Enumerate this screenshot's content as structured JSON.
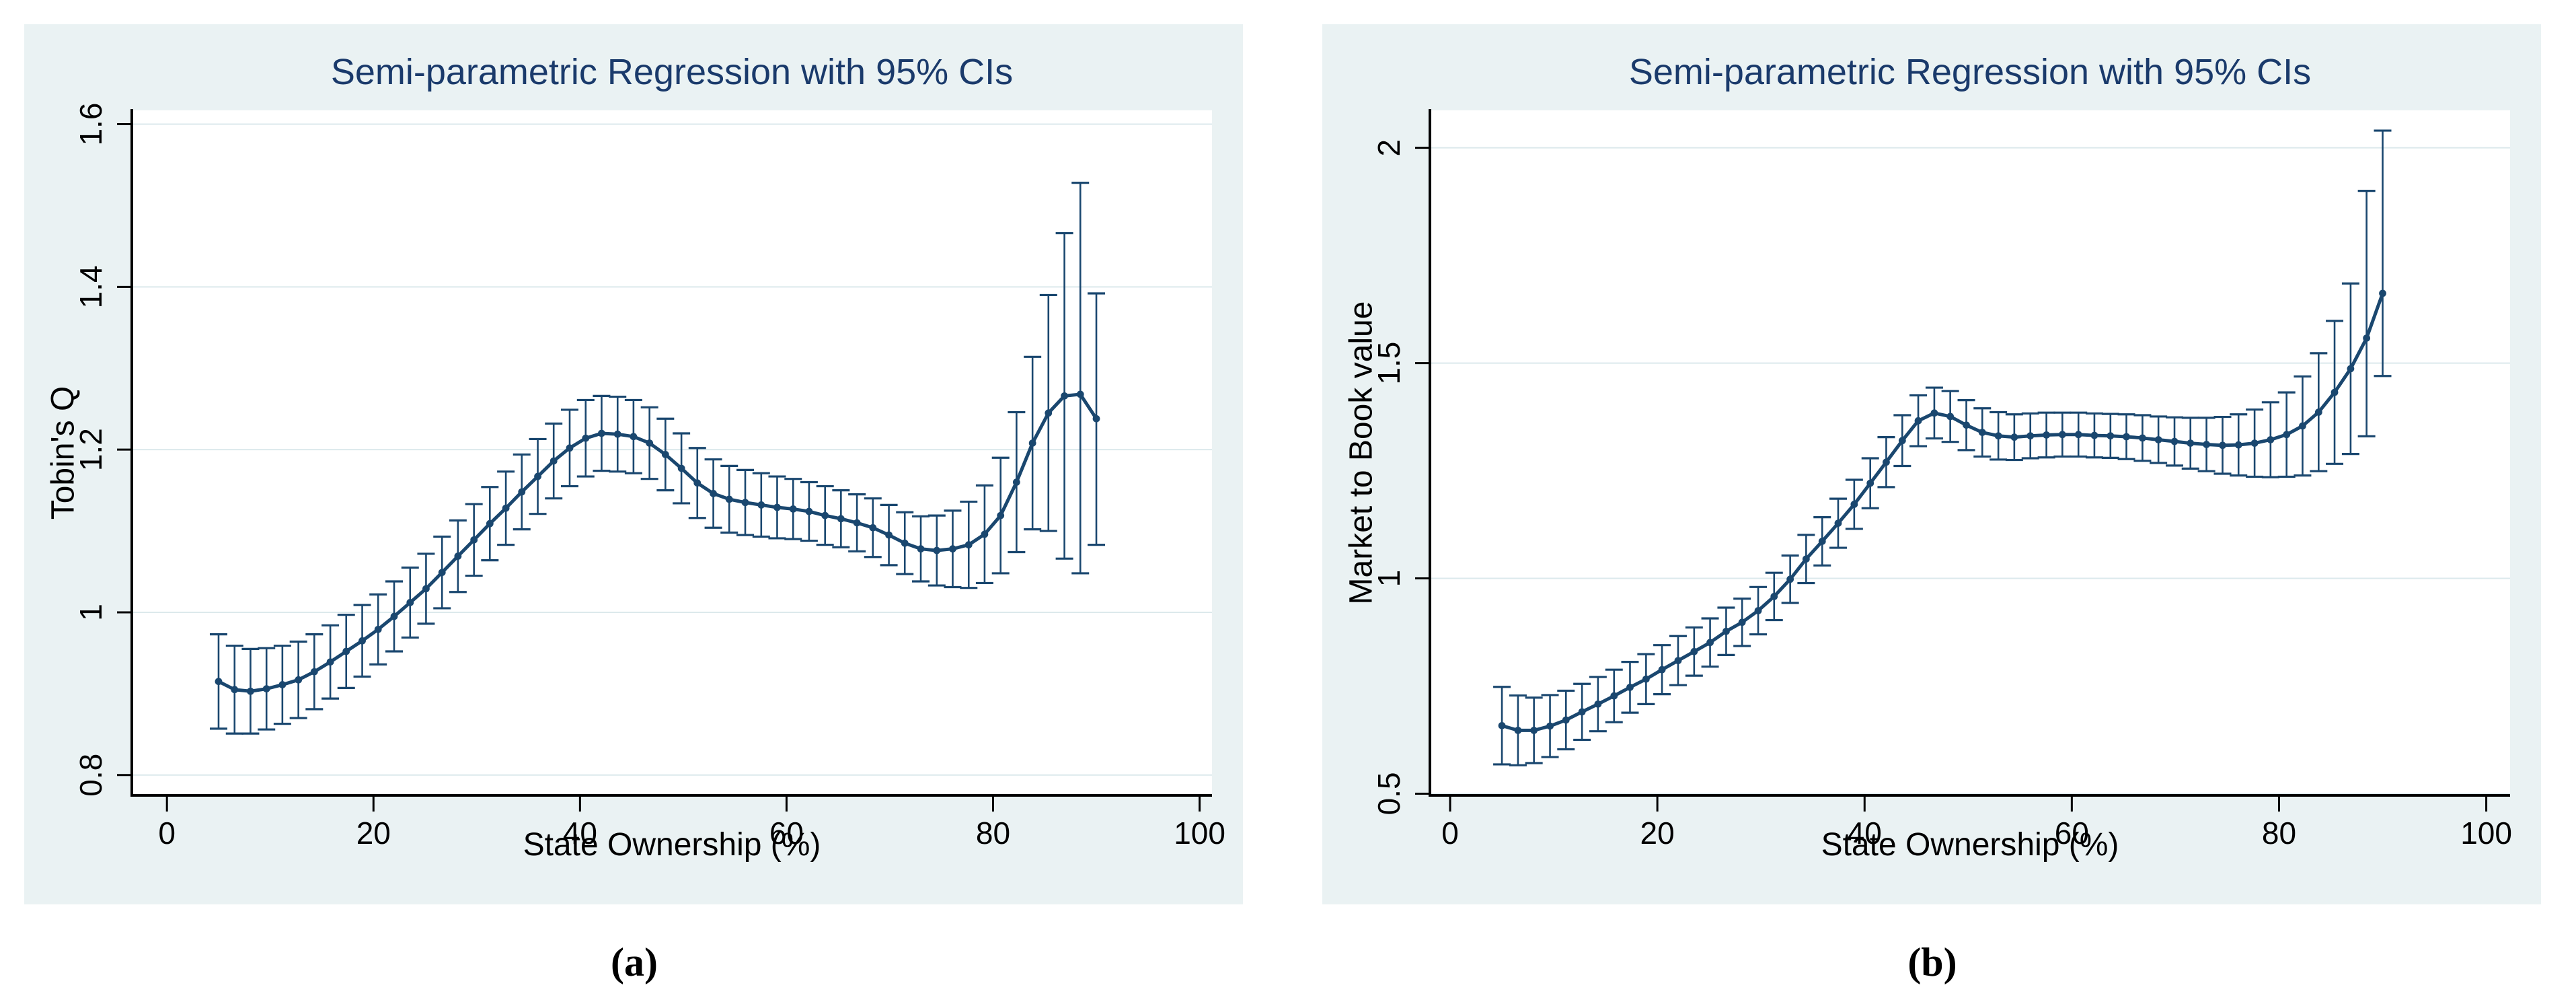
{
  "figure": {
    "background": "#ffffff",
    "panel_background": "#eaf2f3",
    "plot_background": "#ffffff",
    "gridline_color": "#dce9ec",
    "axis_color": "#000000",
    "series_color": "#1a476f",
    "title_color": "#1a3a6b"
  },
  "chart_data": [
    {
      "type": "line",
      "panel_label": "(a)",
      "title": "Semi-parametric Regression with 95% CIs",
      "xlabel": "State Ownership (%)",
      "ylabel": "Tobin's Q",
      "legend": "none",
      "grid": "horizontal",
      "xlim": [
        -3.4,
        101.2
      ],
      "ylim": [
        0.775,
        1.617
      ],
      "xticks": [
        0,
        20,
        40,
        60,
        80,
        100
      ],
      "xtick_labels": [
        "0",
        "20",
        "40",
        "60",
        "80",
        "100"
      ],
      "yticks": [
        0.8,
        1.0,
        1.2,
        1.4,
        1.6
      ],
      "ytick_labels": [
        "0.8",
        "1",
        "1.2",
        "1.4",
        "1.6"
      ],
      "x": [
        5,
        6.55,
        8.09,
        9.64,
        11.18,
        12.73,
        14.27,
        15.82,
        17.36,
        18.91,
        20.45,
        22,
        23.55,
        25.09,
        26.64,
        28.18,
        29.73,
        31.27,
        32.82,
        34.36,
        35.91,
        37.45,
        39,
        40.55,
        42.09,
        43.64,
        45.18,
        46.73,
        48.27,
        49.82,
        51.36,
        52.91,
        54.45,
        56,
        57.55,
        59.09,
        60.64,
        62.18,
        63.73,
        65.27,
        66.82,
        68.36,
        69.91,
        71.45,
        73,
        74.55,
        76.09,
        77.64,
        79.18,
        80.73,
        82.27,
        83.82,
        85.36,
        86.91,
        88.45,
        90
      ],
      "y": [
        0.915,
        0.905,
        0.903,
        0.906,
        0.911,
        0.917,
        0.927,
        0.939,
        0.952,
        0.965,
        0.979,
        0.995,
        1.012,
        1.029,
        1.049,
        1.069,
        1.089,
        1.109,
        1.128,
        1.148,
        1.167,
        1.186,
        1.202,
        1.214,
        1.22,
        1.219,
        1.216,
        1.208,
        1.194,
        1.177,
        1.159,
        1.146,
        1.139,
        1.135,
        1.132,
        1.129,
        1.127,
        1.124,
        1.119,
        1.115,
        1.11,
        1.104,
        1.095,
        1.085,
        1.078,
        1.076,
        1.078,
        1.083,
        1.096,
        1.119,
        1.16,
        1.208,
        1.245,
        1.266,
        1.268,
        1.238
      ],
      "ci_low": [
        0.857,
        0.851,
        0.851,
        0.856,
        0.863,
        0.87,
        0.881,
        0.894,
        0.907,
        0.921,
        0.936,
        0.952,
        0.969,
        0.986,
        1.005,
        1.025,
        1.045,
        1.064,
        1.083,
        1.102,
        1.121,
        1.14,
        1.155,
        1.167,
        1.174,
        1.173,
        1.171,
        1.164,
        1.15,
        1.134,
        1.116,
        1.104,
        1.098,
        1.095,
        1.093,
        1.091,
        1.09,
        1.088,
        1.083,
        1.08,
        1.075,
        1.068,
        1.058,
        1.047,
        1.038,
        1.033,
        1.031,
        1.03,
        1.036,
        1.048,
        1.074,
        1.102,
        1.1,
        1.066,
        1.048,
        1.083
      ],
      "ci_high": [
        0.973,
        0.959,
        0.955,
        0.956,
        0.959,
        0.964,
        0.973,
        0.984,
        0.997,
        1.009,
        1.022,
        1.038,
        1.055,
        1.072,
        1.093,
        1.113,
        1.133,
        1.154,
        1.173,
        1.194,
        1.213,
        1.232,
        1.249,
        1.261,
        1.266,
        1.265,
        1.261,
        1.252,
        1.238,
        1.22,
        1.202,
        1.188,
        1.18,
        1.175,
        1.171,
        1.167,
        1.164,
        1.16,
        1.155,
        1.15,
        1.145,
        1.14,
        1.132,
        1.123,
        1.118,
        1.119,
        1.125,
        1.136,
        1.156,
        1.19,
        1.246,
        1.314,
        1.39,
        1.466,
        1.528,
        1.392
      ]
    },
    {
      "type": "line",
      "panel_label": "(b)",
      "title": "Semi-parametric Regression with 95% CIs",
      "xlabel": "State Ownership (%)",
      "ylabel": "Market to Book value",
      "legend": "none",
      "grid": "horizontal",
      "xlim": [
        -1.95,
        102.3
      ],
      "ylim": [
        0.496,
        2.087
      ],
      "xticks": [
        0,
        20,
        40,
        60,
        80,
        100
      ],
      "xtick_labels": [
        "0",
        "20",
        "40",
        "60",
        "80",
        "100"
      ],
      "yticks": [
        0.5,
        1.0,
        1.5,
        2.0
      ],
      "ytick_labels": [
        "0.5",
        "1",
        "1.5",
        "2"
      ],
      "x": [
        5,
        6.55,
        8.09,
        9.64,
        11.18,
        12.73,
        14.27,
        15.82,
        17.36,
        18.91,
        20.45,
        22,
        23.55,
        25.09,
        26.64,
        28.18,
        29.73,
        31.27,
        32.82,
        34.36,
        35.91,
        37.45,
        39,
        40.55,
        42.09,
        43.64,
        45.18,
        46.73,
        48.27,
        49.82,
        51.36,
        52.91,
        54.45,
        56,
        57.55,
        59.09,
        60.64,
        62.18,
        63.73,
        65.27,
        66.82,
        68.36,
        69.91,
        71.45,
        73,
        74.55,
        76.09,
        77.64,
        79.18,
        80.73,
        82.27,
        83.82,
        85.36,
        86.91,
        88.45,
        90
      ],
      "y": [
        0.658,
        0.647,
        0.647,
        0.657,
        0.671,
        0.69,
        0.708,
        0.727,
        0.747,
        0.766,
        0.788,
        0.809,
        0.83,
        0.851,
        0.877,
        0.898,
        0.925,
        0.958,
        0.998,
        1.045,
        1.086,
        1.128,
        1.172,
        1.221,
        1.27,
        1.32,
        1.366,
        1.384,
        1.376,
        1.356,
        1.339,
        1.331,
        1.328,
        1.331,
        1.333,
        1.334,
        1.334,
        1.332,
        1.331,
        1.329,
        1.326,
        1.322,
        1.318,
        1.314,
        1.311,
        1.309,
        1.31,
        1.314,
        1.322,
        1.334,
        1.354,
        1.386,
        1.432,
        1.487,
        1.558,
        1.662
      ],
      "ci_low": [
        0.568,
        0.566,
        0.571,
        0.585,
        0.603,
        0.625,
        0.645,
        0.666,
        0.688,
        0.708,
        0.731,
        0.752,
        0.774,
        0.795,
        0.822,
        0.843,
        0.87,
        0.903,
        0.943,
        0.989,
        1.03,
        1.071,
        1.115,
        1.163,
        1.212,
        1.261,
        1.307,
        1.325,
        1.317,
        1.298,
        1.283,
        1.276,
        1.275,
        1.279,
        1.281,
        1.283,
        1.283,
        1.281,
        1.28,
        1.277,
        1.273,
        1.268,
        1.262,
        1.255,
        1.249,
        1.243,
        1.239,
        1.236,
        1.235,
        1.236,
        1.239,
        1.249,
        1.266,
        1.289,
        1.33,
        1.47
      ],
      "ci_high": [
        0.748,
        0.728,
        0.723,
        0.729,
        0.739,
        0.755,
        0.771,
        0.788,
        0.806,
        0.824,
        0.845,
        0.866,
        0.886,
        0.907,
        0.932,
        0.953,
        0.98,
        1.013,
        1.053,
        1.101,
        1.142,
        1.185,
        1.229,
        1.279,
        1.328,
        1.379,
        1.425,
        1.443,
        1.435,
        1.414,
        1.395,
        1.386,
        1.381,
        1.383,
        1.385,
        1.385,
        1.385,
        1.383,
        1.382,
        1.381,
        1.379,
        1.376,
        1.374,
        1.373,
        1.373,
        1.375,
        1.381,
        1.392,
        1.409,
        1.432,
        1.469,
        1.523,
        1.598,
        1.685,
        1.9,
        2.04
      ]
    }
  ]
}
